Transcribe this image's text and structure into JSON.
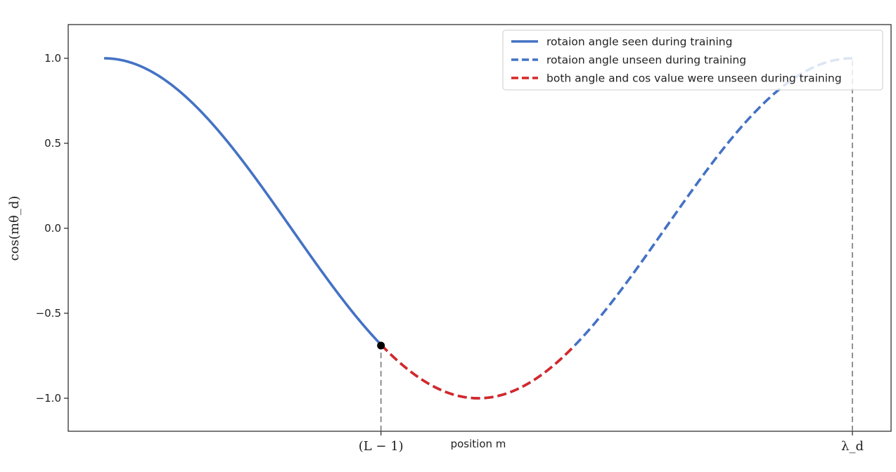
{
  "chart_data": {
    "type": "line",
    "title": "",
    "xlabel": "position m",
    "ylabel": "cos(mθ_d)",
    "ylim": [
      -1.2,
      1.2
    ],
    "yticks": [
      1.0,
      0.5,
      0.0,
      -0.5,
      -1.0
    ],
    "ytick_labels": [
      "1.0",
      "0.5",
      "0.0",
      "−0.5",
      "−1.0"
    ],
    "xticks": [
      {
        "label": "(L − 1)",
        "value": 0.37
      },
      {
        "label": "λ_d",
        "value": 1.0
      }
    ],
    "function": "cos(2π·x)",
    "x_range": [
      -0.1,
      1.08
    ],
    "series": [
      {
        "name": "rotaion angle seen during training",
        "x_range": [
          0.0,
          0.37
        ],
        "style": "solid",
        "color": "#4472c4"
      },
      {
        "name": "rotaion angle unseen during training",
        "x_range": [
          0.37,
          1.0
        ],
        "style": "dashed",
        "color": "#4472c4"
      },
      {
        "name": "both angle and cos value were unseen during training",
        "x_range": [
          0.37,
          0.625
        ],
        "style": "dashed",
        "color": "#d62728"
      }
    ],
    "marker": {
      "x": 0.37,
      "y": -0.69
    },
    "reference_lines": [
      {
        "x": 0.37,
        "y_from": -1.2,
        "y_to": -0.69,
        "style": "dashed",
        "color": "#777777"
      },
      {
        "x": 1.0,
        "y_from": -1.2,
        "y_to": 1.0,
        "style": "dashed",
        "color": "#777777"
      }
    ],
    "legend_position": "top-right",
    "grid": false
  }
}
